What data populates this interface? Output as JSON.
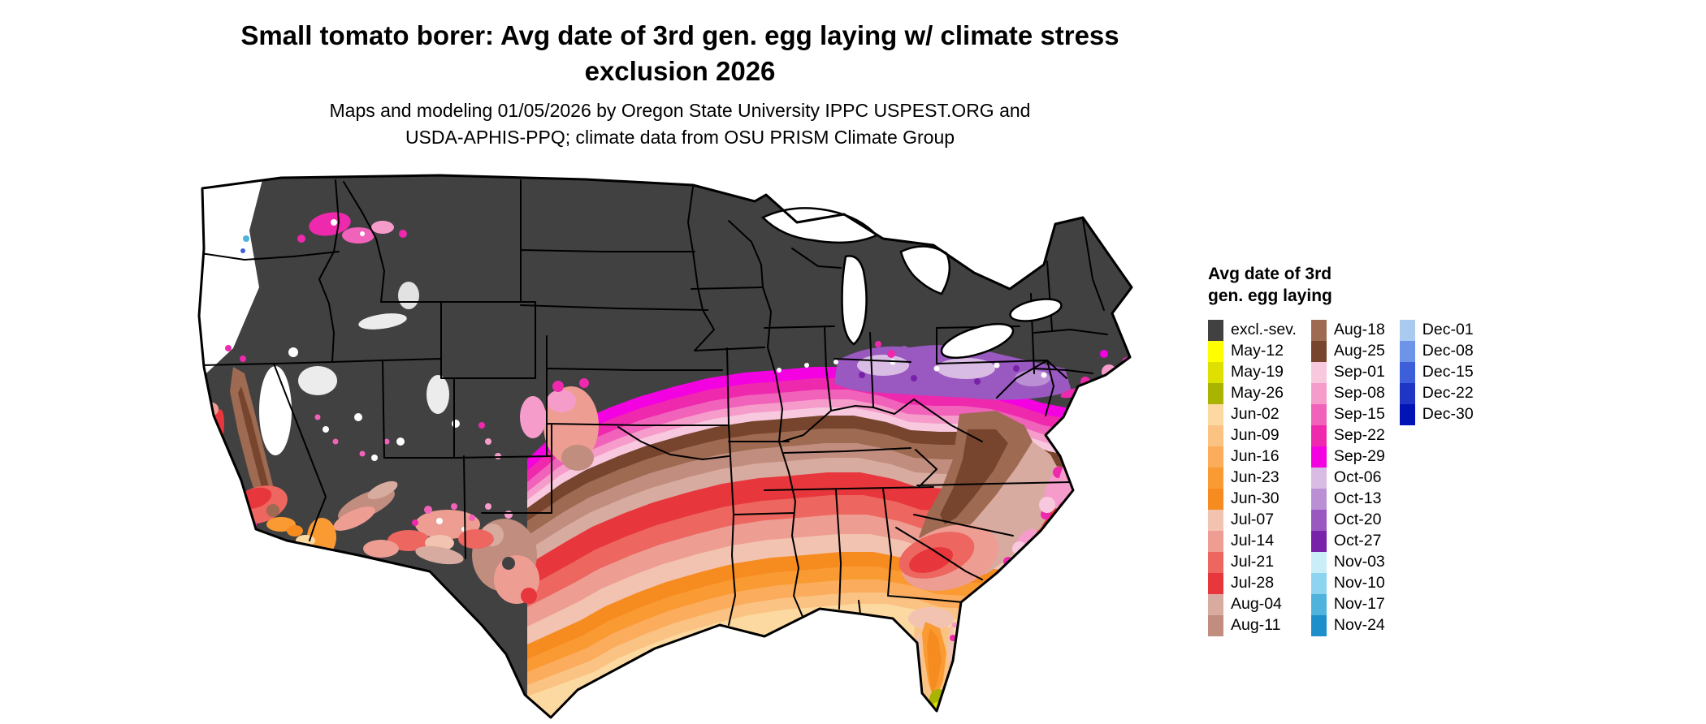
{
  "header": {
    "title": "Small tomato borer: Avg date of 3rd gen. egg laying w/ climate stress exclusion 2026",
    "subtitle": "Maps and modeling 01/05/2026 by Oregon State University IPPC USPEST.ORG and USDA-APHIS-PPQ; climate data from OSU PRISM Climate Group"
  },
  "legend": {
    "title": "Avg date of 3rd gen. egg laying",
    "columns": [
      [
        {
          "label": "excl.-sev.",
          "color": "#414141"
        },
        {
          "label": "May-12",
          "color": "#FFFF00"
        },
        {
          "label": "May-19",
          "color": "#DDE000"
        },
        {
          "label": "May-26",
          "color": "#A8B400"
        },
        {
          "label": "Jun-02",
          "color": "#FBD9A0"
        },
        {
          "label": "Jun-09",
          "color": "#FBC383"
        },
        {
          "label": "Jun-16",
          "color": "#FBAC5C"
        },
        {
          "label": "Jun-23",
          "color": "#FA9A33"
        },
        {
          "label": "Jun-30",
          "color": "#F68B1F"
        },
        {
          "label": "Jul-07",
          "color": "#F2C3B1"
        },
        {
          "label": "Jul-14",
          "color": "#EE9D93"
        },
        {
          "label": "Jul-21",
          "color": "#ED6660"
        },
        {
          "label": "Jul-28",
          "color": "#E8373C"
        },
        {
          "label": "Aug-04",
          "color": "#D8ABA1"
        },
        {
          "label": "Aug-11",
          "color": "#C18D7F"
        }
      ],
      [
        {
          "label": "Aug-18",
          "color": "#9E6A52"
        },
        {
          "label": "Aug-25",
          "color": "#77452D"
        },
        {
          "label": "Sep-01",
          "color": "#F8C9DE"
        },
        {
          "label": "Sep-08",
          "color": "#F69CCB"
        },
        {
          "label": "Sep-15",
          "color": "#F162BA"
        },
        {
          "label": "Sep-22",
          "color": "#EE29AD"
        },
        {
          "label": "Sep-29",
          "color": "#F401E2"
        },
        {
          "label": "Oct-06",
          "color": "#D9BCE4"
        },
        {
          "label": "Oct-13",
          "color": "#BB8FD4"
        },
        {
          "label": "Oct-20",
          "color": "#9A58C1"
        },
        {
          "label": "Oct-27",
          "color": "#7722A8"
        },
        {
          "label": "Nov-03",
          "color": "#C9EEF8"
        },
        {
          "label": "Nov-10",
          "color": "#8CD4EF"
        },
        {
          "label": "Nov-17",
          "color": "#4FB3DE"
        },
        {
          "label": "Nov-24",
          "color": "#1D90CB"
        }
      ],
      [
        {
          "label": "Dec-01",
          "color": "#A9CBF0"
        },
        {
          "label": "Dec-08",
          "color": "#6E94E8"
        },
        {
          "label": "Dec-15",
          "color": "#3D5FD9"
        },
        {
          "label": "Dec-22",
          "color": "#1F35C4"
        },
        {
          "label": "Dec-30",
          "color": "#0313B6"
        }
      ]
    ]
  }
}
